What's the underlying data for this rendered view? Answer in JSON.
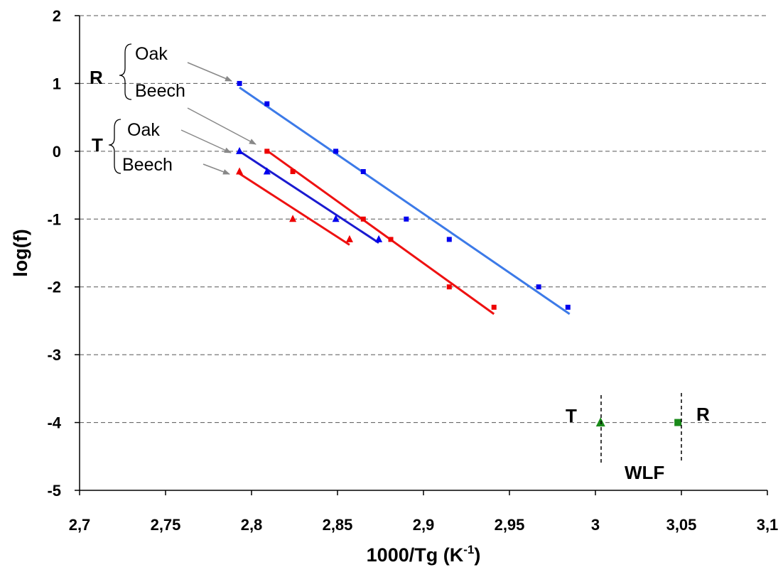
{
  "chart_data": {
    "type": "scatter",
    "title": "",
    "xlabel": "1000/Tg (K",
    "xlabel_sup": "-1",
    "xlabel_suffix": ")",
    "ylabel": "log(f)",
    "xlim": [
      2.7,
      3.1
    ],
    "ylim": [
      -5,
      2
    ],
    "grid": "horizontal dashed",
    "x_ticks": [
      2.7,
      2.75,
      2.8,
      2.85,
      2.9,
      2.95,
      3.0,
      3.05,
      3.1
    ],
    "x_tick_labels": [
      "2,7",
      "2,75",
      "2,8",
      "2,85",
      "2,9",
      "2,95",
      "3",
      "3,05",
      "3,1"
    ],
    "y_ticks": [
      2,
      1,
      0,
      -1,
      -2,
      -3,
      -4,
      -5
    ],
    "y_tick_labels": [
      "2",
      "1",
      "0",
      "-1",
      "-2",
      "-3",
      "-4",
      "-5"
    ],
    "series": [
      {
        "key": "r_oak",
        "marker": "square",
        "color": "#0000ee",
        "line_color": "#3c7ae8",
        "points": [
          [
            2.793,
            1.0
          ],
          [
            2.809,
            0.7
          ],
          [
            2.849,
            0.0
          ],
          [
            2.865,
            -0.3
          ],
          [
            2.89,
            -1.0
          ],
          [
            2.915,
            -1.3
          ],
          [
            2.967,
            -2.0
          ],
          [
            2.984,
            -2.3
          ]
        ],
        "fit": [
          [
            2.793,
            0.94
          ],
          [
            2.985,
            -2.4
          ]
        ]
      },
      {
        "key": "r_beech",
        "marker": "square",
        "color": "#ee0000",
        "line_color": "#ee1111",
        "points": [
          [
            2.809,
            0.0
          ],
          [
            2.824,
            -0.3
          ],
          [
            2.865,
            -1.0
          ],
          [
            2.881,
            -1.3
          ],
          [
            2.915,
            -2.0
          ],
          [
            2.941,
            -2.3
          ]
        ],
        "fit": [
          [
            2.809,
            0.01
          ],
          [
            2.941,
            -2.4
          ]
        ]
      },
      {
        "key": "t_oak",
        "marker": "triangle",
        "color": "#0000ee",
        "line_color": "#1a1ad0",
        "points": [
          [
            2.793,
            0.0
          ],
          [
            2.809,
            -0.3
          ],
          [
            2.849,
            -1.0
          ],
          [
            2.874,
            -1.3
          ]
        ],
        "fit": [
          [
            2.793,
            0.0
          ],
          [
            2.874,
            -1.35
          ]
        ]
      },
      {
        "key": "t_beech",
        "marker": "triangle",
        "color": "#ee0000",
        "line_color": "#ee1111",
        "points": [
          [
            2.793,
            -0.3
          ],
          [
            2.824,
            -1.0
          ],
          [
            2.857,
            -1.3
          ]
        ],
        "fit": [
          [
            2.793,
            -0.33
          ],
          [
            2.857,
            -1.38
          ]
        ]
      },
      {
        "key": "wlf_t",
        "marker": "triangle",
        "color": "#1a8a1a",
        "line_color": "",
        "points": [
          [
            3.003,
            -4.0
          ]
        ],
        "fit": []
      },
      {
        "key": "wlf_r",
        "marker": "square",
        "color": "#1a8a1a",
        "line_color": "",
        "points": [
          [
            3.048,
            -4.0
          ]
        ],
        "fit": []
      }
    ],
    "annotations": {
      "r_label": "R",
      "r_oak": "Oak",
      "r_beech": "Beech",
      "t_label": "T",
      "t_oak": "Oak",
      "t_beech": "Beech",
      "wlf_t": "T",
      "wlf_r": "R",
      "wlf": "WLF"
    }
  }
}
